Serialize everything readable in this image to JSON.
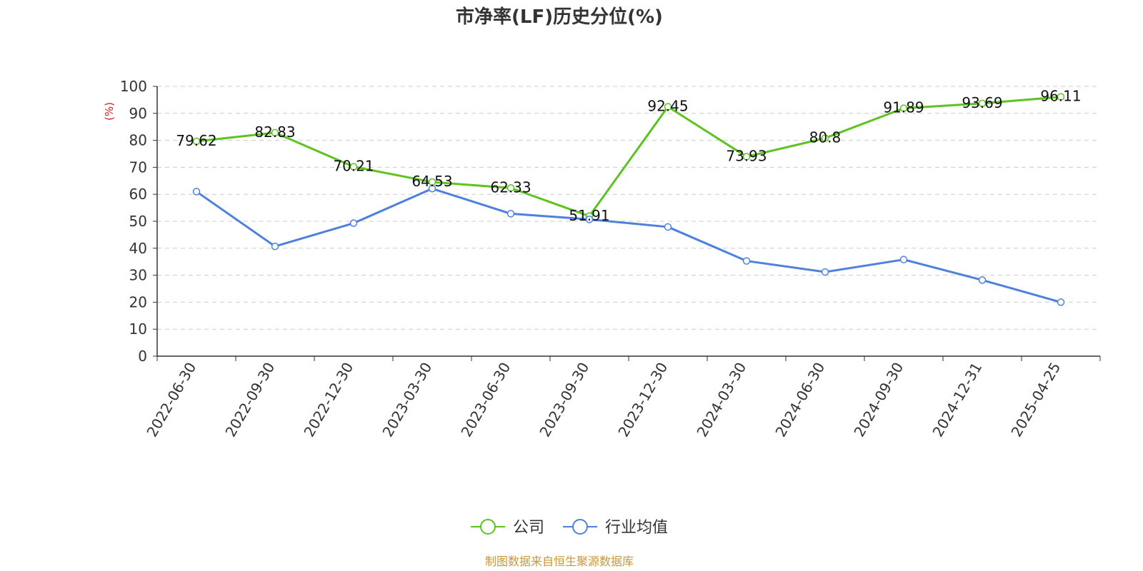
{
  "chart_data": {
    "type": "line",
    "title": "市净率(LF)历史分位(%)",
    "ylabel": "(%)",
    "xlabel": "",
    "ylim": [
      0,
      100
    ],
    "yticks": [
      0,
      10,
      20,
      30,
      40,
      50,
      60,
      70,
      80,
      90,
      100
    ],
    "grid": true,
    "legend_position": "bottom-center",
    "categories": [
      "2022-06-30",
      "2022-09-30",
      "2022-12-30",
      "2023-03-30",
      "2023-06-30",
      "2023-09-30",
      "2023-12-30",
      "2024-03-30",
      "2024-06-30",
      "2024-09-30",
      "2024-12-31",
      "2025-04-25"
    ],
    "series": [
      {
        "name": "公司",
        "color": "#5cc31f",
        "values": [
          79.62,
          82.83,
          70.21,
          64.53,
          62.33,
          51.91,
          92.45,
          73.93,
          80.8,
          91.89,
          93.69,
          96.11
        ],
        "labels": [
          "79.62",
          "82.83",
          "70.21",
          "64.53",
          "62.33",
          "51.91",
          "92.45",
          "73.93",
          "80.8",
          "91.89",
          "93.69",
          "96.11"
        ],
        "show_labels": true
      },
      {
        "name": "行业均值",
        "color": "#4e81dd",
        "values": [
          61.0,
          40.7,
          49.3,
          62.1,
          52.8,
          50.7,
          47.9,
          35.3,
          31.2,
          35.8,
          28.2,
          20.0
        ],
        "show_labels": false
      }
    ]
  },
  "source_text": "制图数据来自恒生聚源数据库",
  "colors": {
    "ylabel": "#e01b1b",
    "source": "#c9963a",
    "axis": "#333333",
    "grid": "#cccccc"
  }
}
